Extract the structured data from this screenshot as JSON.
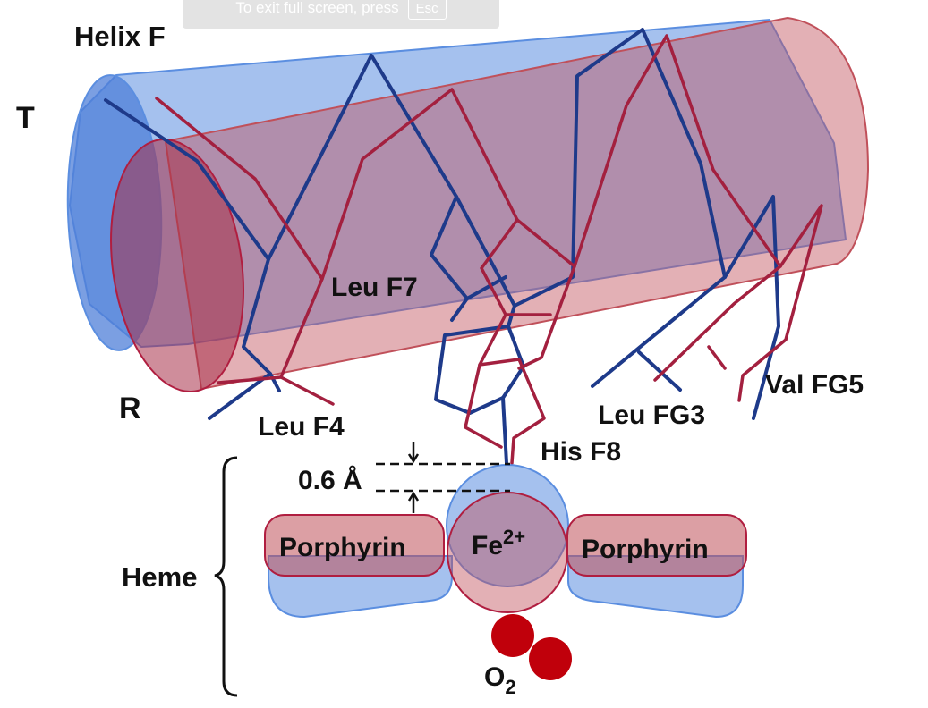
{
  "banner": {
    "text": "To exit full screen, press",
    "key": "Esc"
  },
  "labels": {
    "helix": "Helix F",
    "t_state": "T",
    "r_state": "R",
    "leu_f7": "Leu F7",
    "leu_f4": "Leu F4",
    "leu_fg3": "Leu FG3",
    "val_fg5": "Val FG5",
    "his_f8": "His F8",
    "shift": "0.6 Å",
    "heme": "Heme",
    "porphyrin_left": "Porphyrin",
    "porphyrin_right": "Porphyrin",
    "iron": "Fe",
    "iron_charge": "2+",
    "oxygen": "O",
    "oxygen_sub": "2"
  },
  "colors": {
    "t_state": "#1e3a8a",
    "r_state": "#a3203f",
    "t_fill": "#5b8ee0",
    "r_fill": "#c0505a",
    "t_text": "#15506a",
    "r_text": "#c9622a",
    "oxygen": "#c0000b"
  }
}
